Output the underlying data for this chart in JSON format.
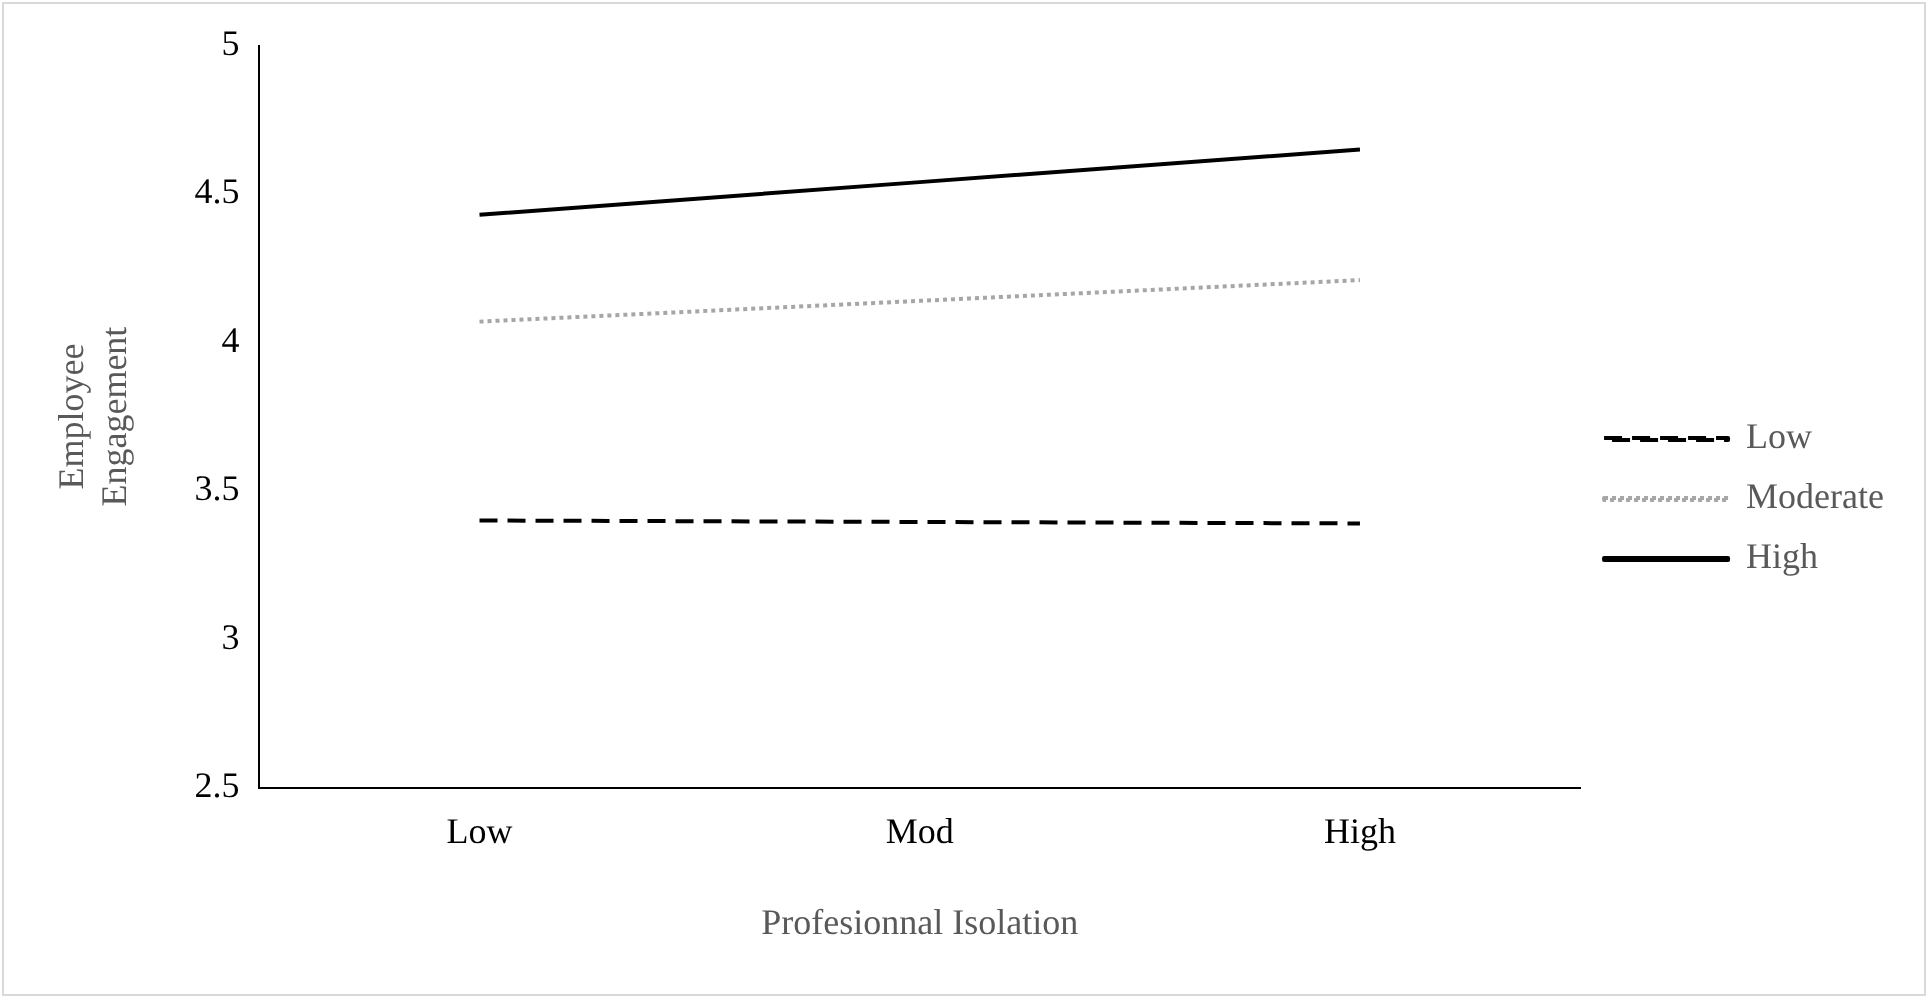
{
  "chart_data": {
    "type": "line",
    "xlabel": "Profesionnal Isolation",
    "ylabel": "Employee Engagement",
    "categories": [
      "Low",
      "Mod",
      "High"
    ],
    "series": [
      {
        "name": "Low",
        "color": "#000000",
        "line_style": "dashed",
        "values": [
          3.4,
          3.395,
          3.39
        ]
      },
      {
        "name": "Moderate",
        "color": "#a6a6a6",
        "line_style": "dotted",
        "values": [
          4.07,
          4.14,
          4.21
        ]
      },
      {
        "name": "High",
        "color": "#000000",
        "line_style": "solid",
        "values": [
          4.43,
          4.54,
          4.65
        ]
      }
    ],
    "ylim": [
      2.5,
      5
    ],
    "yticks": [
      2.5,
      3,
      3.5,
      4,
      4.5,
      5
    ],
    "grid": false,
    "legend": "right",
    "marker": "none"
  }
}
